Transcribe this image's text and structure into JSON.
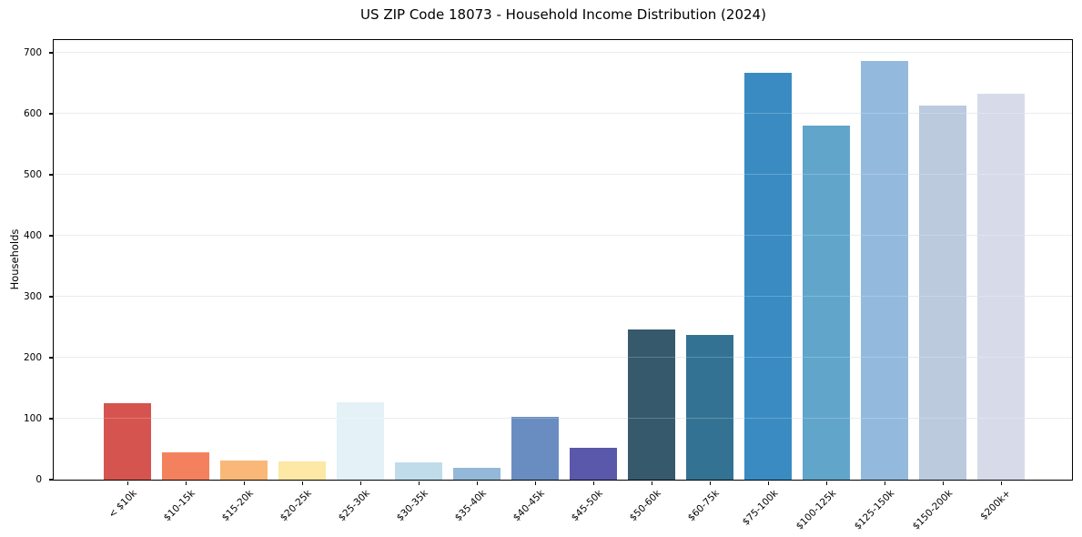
{
  "chart_data": {
    "type": "bar",
    "title": "US ZIP Code 18073 - Household Income Distribution (2024)",
    "xlabel": "",
    "ylabel": "Households",
    "categories": [
      "< $10k",
      "$10-15k",
      "$15-20k",
      "$20-25k",
      "$25-30k",
      "$30-35k",
      "$35-40k",
      "$40-45k",
      "$45-50k",
      "$50-60k",
      "$60-75k",
      "$75-100k",
      "$100-125k",
      "$125-150k",
      "$150-200k",
      "$200k+"
    ],
    "values": [
      125,
      44,
      31,
      29,
      126,
      27,
      18,
      102,
      52,
      246,
      236,
      667,
      580,
      686,
      613,
      632
    ],
    "colors": [
      "#d6544f",
      "#f4815e",
      "#f9b877",
      "#fde8a5",
      "#e4f1f6",
      "#c0dcea",
      "#93b8d8",
      "#6a8dc1",
      "#5a58aa",
      "#36596c",
      "#337293",
      "#398bc2",
      "#61a5cb",
      "#93badd",
      "#bccade",
      "#d7dbe9"
    ],
    "yticks": [
      0,
      100,
      200,
      300,
      400,
      500,
      600,
      700
    ],
    "ylim": [
      0,
      721
    ],
    "grid": "horizontal",
    "grid_color": "#e3e7ea",
    "grid_overlay_color": "rgba(255,255,255,0.22)",
    "axis_color": "#000000",
    "background_color": "#ffffff",
    "legend": "none",
    "bar_width_fraction": 0.8125
  }
}
